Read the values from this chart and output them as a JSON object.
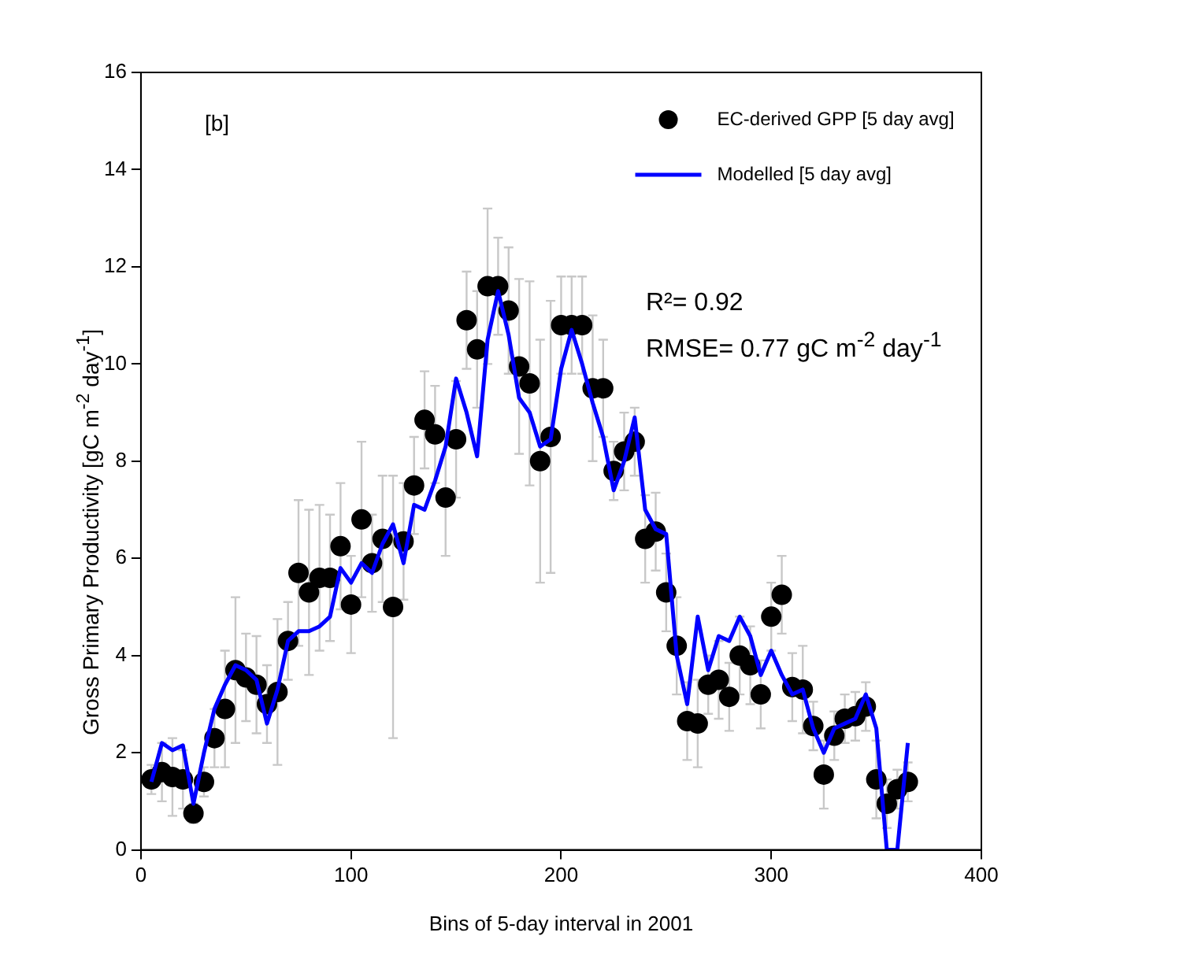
{
  "chart_data": {
    "type": "scatter",
    "xlabel": "Bins of 5-day interval in 2001",
    "ylabel": "Gross Primary Productivity [gC m$^{-2}$ day$^{-1}$]",
    "x": [
      5,
      10,
      15,
      20,
      25,
      30,
      35,
      40,
      45,
      50,
      55,
      60,
      65,
      70,
      75,
      80,
      85,
      90,
      95,
      100,
      105,
      110,
      115,
      120,
      125,
      130,
      135,
      140,
      145,
      150,
      155,
      160,
      165,
      170,
      175,
      180,
      185,
      190,
      195,
      200,
      205,
      210,
      215,
      220,
      225,
      230,
      235,
      240,
      245,
      250,
      255,
      260,
      265,
      270,
      275,
      280,
      285,
      290,
      295,
      300,
      305,
      310,
      315,
      320,
      325,
      330,
      335,
      340,
      345,
      350,
      355,
      360,
      365
    ],
    "series": [
      {
        "name": "EC-derived GPP [5 day avg]",
        "color": "#000000",
        "marker": "circle",
        "values": [
          1.45,
          1.6,
          1.5,
          1.45,
          0.75,
          1.4,
          2.3,
          2.9,
          3.7,
          3.55,
          3.4,
          3.0,
          3.25,
          4.3,
          5.7,
          5.3,
          5.6,
          5.6,
          6.25,
          5.05,
          6.8,
          5.9,
          6.4,
          5.0,
          6.35,
          7.5,
          8.85,
          8.55,
          7.25,
          8.45,
          10.9,
          10.3,
          11.6,
          11.6,
          11.1,
          9.95,
          9.6,
          8.0,
          8.5,
          10.8,
          10.8,
          10.8,
          9.5,
          9.5,
          7.8,
          8.2,
          8.4,
          6.4,
          6.55,
          5.3,
          4.2,
          2.65,
          2.6,
          3.4,
          3.5,
          3.15,
          4.0,
          3.8,
          3.2,
          4.8,
          5.25,
          3.35,
          3.3,
          2.55,
          1.55,
          2.35,
          2.7,
          2.75,
          2.95,
          1.45,
          0.95,
          1.25,
          1.4
        ],
        "errors": [
          0.3,
          0.6,
          0.8,
          0.6,
          0.2,
          0.3,
          0.6,
          1.2,
          1.5,
          0.9,
          1.0,
          0.8,
          1.5,
          0.8,
          1.5,
          1.7,
          1.5,
          1.3,
          1.3,
          1.0,
          1.6,
          1.0,
          1.3,
          2.7,
          1.2,
          1.0,
          1.0,
          1.0,
          1.2,
          1.2,
          1.0,
          1.2,
          1.6,
          1.0,
          1.3,
          1.8,
          2.1,
          2.5,
          2.8,
          1.0,
          1.0,
          1.0,
          1.5,
          1.0,
          0.6,
          0.8,
          0.7,
          0.9,
          0.8,
          0.8,
          1.0,
          0.8,
          0.9,
          0.6,
          0.8,
          0.7,
          0.8,
          0.8,
          0.7,
          0.7,
          0.8,
          0.7,
          0.9,
          0.5,
          0.7,
          0.5,
          0.5,
          0.5,
          0.5,
          0.8,
          0.5,
          0.4,
          0.4
        ]
      },
      {
        "name": "Modelled [5 day avg]",
        "type": "line",
        "color": "#0000ff",
        "marker": "none",
        "line_style": "solid",
        "values": [
          1.4,
          2.2,
          2.05,
          2.15,
          0.95,
          2.0,
          2.9,
          3.4,
          3.8,
          3.7,
          3.5,
          2.6,
          3.3,
          4.3,
          4.5,
          4.5,
          4.6,
          4.8,
          5.8,
          5.5,
          5.9,
          5.7,
          6.3,
          6.7,
          5.9,
          7.1,
          7.0,
          7.6,
          8.3,
          9.7,
          9.0,
          8.1,
          10.5,
          11.5,
          10.6,
          9.3,
          9.0,
          8.3,
          8.45,
          9.9,
          10.7,
          10.0,
          9.2,
          8.5,
          7.4,
          8.0,
          8.9,
          7.0,
          6.6,
          6.5,
          4.0,
          3.0,
          4.8,
          3.7,
          4.4,
          4.3,
          4.8,
          4.4,
          3.6,
          4.1,
          3.6,
          3.2,
          3.3,
          2.5,
          2.0,
          2.5,
          2.6,
          2.7,
          3.2,
          2.5,
          0,
          0,
          2.2
        ]
      }
    ],
    "xlim": [
      0,
      400
    ],
    "xticks": [
      0,
      100,
      200,
      300,
      400
    ],
    "ylim": [
      0,
      16
    ],
    "yticks": [
      0,
      2,
      4,
      6,
      8,
      10,
      12,
      14,
      16
    ],
    "grid": false,
    "legend": "top right",
    "annotations": [
      "[b]",
      "R²= 0.92",
      "RMSE= 0.77 gC m$^{-2}$ day$^{-1}$"
    ]
  }
}
